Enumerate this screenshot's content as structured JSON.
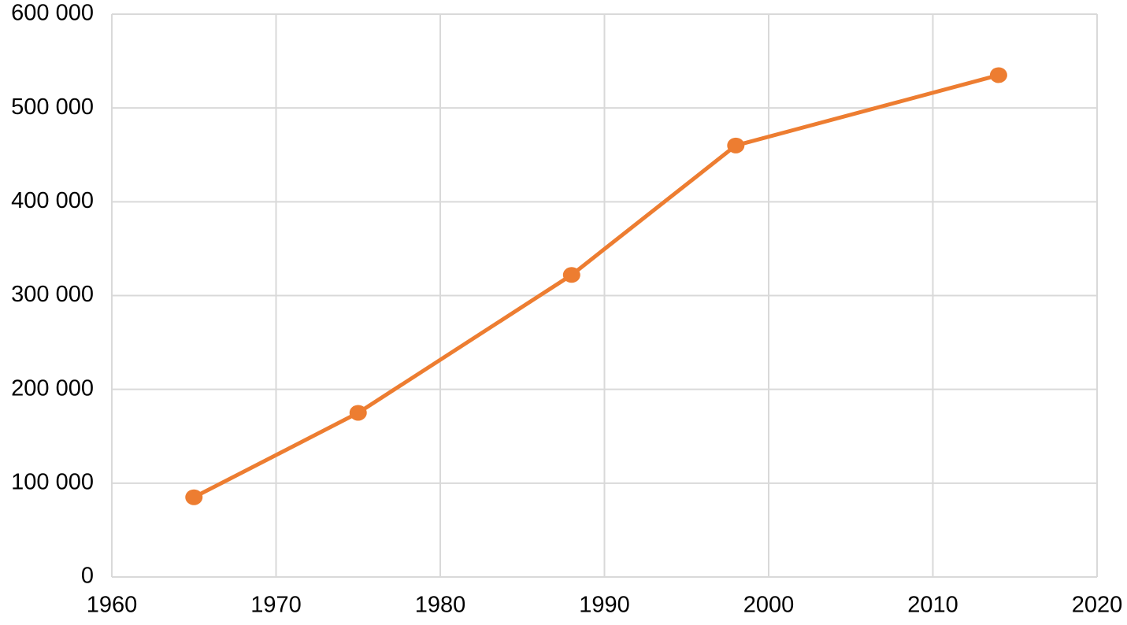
{
  "chart_data": {
    "type": "line",
    "x": [
      1965,
      1975,
      1988,
      1998,
      2014
    ],
    "series": [
      {
        "color": "#ed7d31",
        "values": [
          85000,
          175000,
          322000,
          460000,
          535000
        ]
      }
    ],
    "xlim": [
      1960,
      2020
    ],
    "xticks": [
      1960,
      1970,
      1980,
      1990,
      2000,
      2010,
      2020
    ],
    "ylim": [
      0,
      600000
    ],
    "yticks": [
      0,
      {
        "value": 100000,
        "label": "100 000"
      },
      {
        "value": 200000,
        "label": "200 000"
      },
      {
        "value": 300000,
        "label": "300 000"
      },
      {
        "value": 400000,
        "label": "400 000"
      },
      {
        "value": 500000,
        "label": "500 000"
      },
      {
        "value": 600000,
        "label": "600 000"
      }
    ],
    "grid": true
  }
}
